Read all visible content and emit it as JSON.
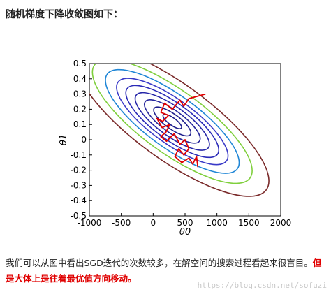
{
  "heading": "随机梯度下降收敛图如下：",
  "caption": {
    "normal": "我们可以从图中看出SGD迭代的次数较多，在解空间的搜索过程看起来很盲目。",
    "highlight_a": "但",
    "highlight_b": "是大体上是往着最优值方向移动。"
  },
  "watermark": "https://blog.csdn.net/sofuzi",
  "chart_data": {
    "type": "contour",
    "xlim": [
      -1000,
      2000
    ],
    "ylim": [
      -0.5,
      0.5
    ],
    "xticks": [
      "-1000",
      "-500",
      "0",
      "500",
      "1000",
      "1500",
      "2000"
    ],
    "yticks": [
      "0.5",
      "0.4",
      "0.3",
      "0.2",
      "0.1",
      "0",
      "-0.1",
      "-0.2",
      "-0.3",
      "-0.4",
      "-0.5"
    ],
    "xlabel": "θ0",
    "ylabel": "θ1",
    "contour_center": [
      300,
      0.12
    ],
    "contour_levels": [
      1,
      2,
      3,
      4,
      5,
      6,
      7.2,
      8.6,
      10.4
    ],
    "contour_colors": [
      "#1e1e8c",
      "#1e1e8c",
      "#24249b",
      "#2626a8",
      "#2a2ab8",
      "#3a3ac8",
      "#1f86d6",
      "#7fcf3c",
      "#7a2a2a"
    ],
    "sgd_path": [
      [
        820,
        0.3
      ],
      [
        560,
        0.27
      ],
      [
        480,
        0.22
      ],
      [
        420,
        0.26
      ],
      [
        300,
        0.2
      ],
      [
        180,
        0.24
      ],
      [
        120,
        0.18
      ],
      [
        240,
        0.16
      ],
      [
        150,
        0.12
      ],
      [
        60,
        0.14
      ],
      [
        140,
        0.08
      ],
      [
        260,
        0.1
      ],
      [
        200,
        0.05
      ],
      [
        120,
        0.02
      ],
      [
        210,
        -0.01
      ],
      [
        330,
        0.04
      ],
      [
        420,
        -0.03
      ],
      [
        500,
        0.0
      ],
      [
        560,
        -0.06
      ],
      [
        480,
        -0.1
      ],
      [
        400,
        -0.06
      ],
      [
        340,
        -0.11
      ],
      [
        450,
        -0.15
      ],
      [
        560,
        -0.12
      ],
      [
        620,
        -0.16
      ],
      [
        680,
        -0.11
      ],
      [
        700,
        -0.18
      ]
    ],
    "sgd_color": "#e00000"
  }
}
